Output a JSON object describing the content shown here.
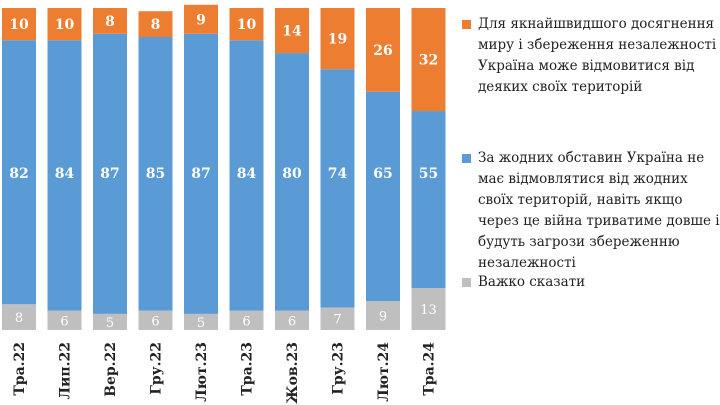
{
  "chart_data": {
    "type": "bar",
    "stacked": true,
    "normalized_percent": true,
    "categories": [
      "Тра.22",
      "Лип.22",
      "Вер.22",
      "Гру.22",
      "Лют.23",
      "Тра.23",
      "Жов.23",
      "Гру.23",
      "Лют.24",
      "Тра.24"
    ],
    "series": [
      {
        "name": "Важко сказати",
        "color": "#bfbfbf",
        "values": [
          8,
          6,
          5,
          6,
          5,
          6,
          6,
          7,
          9,
          13
        ]
      },
      {
        "name": "За жодних обставин Україна не має відмовлятися від жодних своїх територій, навіть якщо через це війна триватиме довше і будуть загрози збереженню незалежності",
        "color": "#5b9bd5",
        "values": [
          82,
          84,
          87,
          85,
          87,
          84,
          80,
          74,
          65,
          55
        ]
      },
      {
        "name": "Для якнайшвидшого досягнення миру і збереження незалежності Україна може відмовитися від деяких своїх територій",
        "color": "#ed7d31",
        "values": [
          10,
          10,
          8,
          8,
          9,
          10,
          14,
          19,
          26,
          32
        ]
      }
    ],
    "title": "",
    "xlabel": "",
    "ylabel": "",
    "ylim": [
      0,
      100
    ],
    "grid": false,
    "legend_position": "right"
  },
  "legend": {
    "items": [
      {
        "label_lines": [
          "Для якнайшвидшого досягнення",
          "миру і збереження незалежності",
          "Україна може відмовитися від",
          "деяких своїх територій"
        ],
        "color": "#ed7d31"
      },
      {
        "label_lines": [
          "За жодних обставин Україна не",
          "має відмовлятися від жодних",
          "своїх територій, навіть якщо",
          "через це війна триватиме довше і",
          "будуть загрози збереженню",
          "незалежності"
        ],
        "color": "#5b9bd5"
      },
      {
        "label_lines": [
          "Важко сказати"
        ],
        "color": "#bfbfbf"
      }
    ]
  }
}
